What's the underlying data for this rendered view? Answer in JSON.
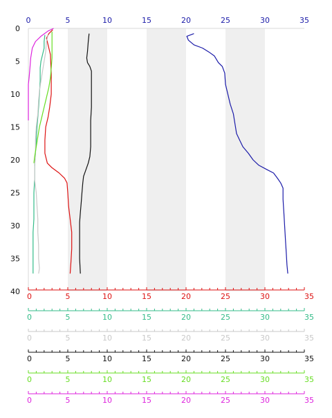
{
  "chart_data": {
    "type": "line",
    "title": "",
    "orientation": "profile-vertical-depth",
    "grid": false,
    "depth_axis": {
      "label": "",
      "range": [
        0,
        40
      ],
      "inverted": true,
      "ticks": [
        0,
        5,
        10,
        15,
        20,
        25,
        30,
        35,
        40
      ],
      "tick_labels": [
        "0",
        "5",
        "10",
        "15",
        "20",
        "25",
        "30",
        "35",
        "40"
      ]
    },
    "band_ranges": [
      [
        5,
        10
      ],
      [
        15,
        20
      ],
      [
        25,
        30
      ]
    ],
    "band_color": "#efefef",
    "x_axes": [
      {
        "id": "top_blue",
        "position": "top",
        "color": "#1a1aa8",
        "range": [
          0,
          35
        ],
        "tick_labels": [
          "0",
          "5",
          "10",
          "15",
          "20",
          "25",
          "30",
          "35"
        ]
      },
      {
        "id": "red",
        "position": "bottom",
        "color": "#dd1111",
        "range": [
          0,
          35
        ],
        "tick_labels": [
          "0",
          "5",
          "10",
          "15",
          "20",
          "25",
          "30",
          "35"
        ]
      },
      {
        "id": "teal",
        "position": "bottom",
        "color": "#33bb88",
        "range": [
          0,
          35
        ],
        "tick_labels": [
          "0",
          "5",
          "10",
          "15",
          "20",
          "25",
          "30",
          "35"
        ]
      },
      {
        "id": "lightgray",
        "position": "bottom",
        "color": "#c8c8c8",
        "range": [
          0,
          35
        ],
        "tick_labels": [
          "0",
          "5",
          "10",
          "15",
          "20",
          "25",
          "30",
          "35"
        ]
      },
      {
        "id": "black",
        "position": "bottom",
        "color": "#111111",
        "range": [
          0,
          35
        ],
        "tick_labels": [
          "0",
          "5",
          "10",
          "15",
          "20",
          "25",
          "30",
          "35"
        ]
      },
      {
        "id": "lightgreen",
        "position": "bottom",
        "color": "#66dd22",
        "range": [
          0,
          35
        ],
        "tick_labels": [
          "0",
          "5",
          "10",
          "15",
          "20",
          "25",
          "30",
          "35"
        ]
      },
      {
        "id": "magenta",
        "position": "bottom",
        "color": "#dd22dd",
        "range": [
          0,
          35
        ],
        "tick_labels": [
          "0",
          "5",
          "10",
          "15",
          "20",
          "25",
          "30",
          "35"
        ]
      }
    ],
    "series": [
      {
        "axis": "top_blue",
        "color": "#1a1aa8",
        "values": [
          [
            21.0,
            0.8
          ],
          [
            20.1,
            1.2
          ],
          [
            20.3,
            1.8
          ],
          [
            21.0,
            2.5
          ],
          [
            22.1,
            3.0
          ],
          [
            22.9,
            3.6
          ],
          [
            23.6,
            4.2
          ],
          [
            24.1,
            5.2
          ],
          [
            24.6,
            5.8
          ],
          [
            24.9,
            6.8
          ],
          [
            25.0,
            8.5
          ],
          [
            25.3,
            10.0
          ],
          [
            25.6,
            11.5
          ],
          [
            26.0,
            13.0
          ],
          [
            26.2,
            14.5
          ],
          [
            26.4,
            16.0
          ],
          [
            26.8,
            17.0
          ],
          [
            27.2,
            18.0
          ],
          [
            27.9,
            19.0
          ],
          [
            28.5,
            20.0
          ],
          [
            29.2,
            20.8
          ],
          [
            30.3,
            21.5
          ],
          [
            31.1,
            22.0
          ],
          [
            31.6,
            22.8
          ],
          [
            32.0,
            23.5
          ],
          [
            32.3,
            24.3
          ],
          [
            32.3,
            26.0
          ],
          [
            32.4,
            28.0
          ],
          [
            32.5,
            30.0
          ],
          [
            32.6,
            32.0
          ],
          [
            32.7,
            34.0
          ],
          [
            32.8,
            36.0
          ],
          [
            32.9,
            37.3
          ]
        ]
      },
      {
        "axis": "red",
        "color": "#dd1111",
        "values": [
          [
            3.1,
            0.2
          ],
          [
            2.6,
            0.8
          ],
          [
            2.3,
            1.5
          ],
          [
            2.5,
            2.5
          ],
          [
            2.8,
            4.0
          ],
          [
            2.9,
            7.0
          ],
          [
            2.9,
            10.0
          ],
          [
            2.7,
            12.0
          ],
          [
            2.5,
            13.5
          ],
          [
            2.2,
            15.0
          ],
          [
            2.1,
            17.0
          ],
          [
            2.1,
            19.0
          ],
          [
            2.4,
            20.5
          ],
          [
            3.0,
            21.2
          ],
          [
            3.9,
            22.0
          ],
          [
            4.6,
            22.8
          ],
          [
            4.9,
            23.5
          ],
          [
            5.0,
            25.0
          ],
          [
            5.1,
            27.0
          ],
          [
            5.3,
            29.0
          ],
          [
            5.5,
            31.0
          ],
          [
            5.5,
            33.5
          ],
          [
            5.4,
            35.5
          ],
          [
            5.3,
            37.3
          ]
        ]
      },
      {
        "axis": "teal",
        "color": "#33bb88",
        "values": [
          [
            2.1,
            1.0
          ],
          [
            2.0,
            2.0
          ],
          [
            2.0,
            3.0
          ],
          [
            1.8,
            4.0
          ],
          [
            1.6,
            5.0
          ],
          [
            1.5,
            6.0
          ],
          [
            1.5,
            8.0
          ],
          [
            1.4,
            10.0
          ],
          [
            1.3,
            12.0
          ],
          [
            1.2,
            13.5
          ],
          [
            1.1,
            15.0
          ],
          [
            1.0,
            17.0
          ],
          [
            0.9,
            19.0
          ],
          [
            0.8,
            21.0
          ],
          [
            0.8,
            23.0
          ],
          [
            0.7,
            25.0
          ],
          [
            0.7,
            27.0
          ],
          [
            0.7,
            29.0
          ],
          [
            0.6,
            31.0
          ],
          [
            0.6,
            33.0
          ],
          [
            0.6,
            35.0
          ],
          [
            0.6,
            37.3
          ]
        ]
      },
      {
        "axis": "lightgray",
        "color": "#c8c8c8",
        "values": [
          [
            2.5,
            1.0
          ],
          [
            2.3,
            2.0
          ],
          [
            2.2,
            3.5
          ],
          [
            2.0,
            5.0
          ],
          [
            1.8,
            6.5
          ],
          [
            1.6,
            8.0
          ],
          [
            1.4,
            9.5
          ],
          [
            1.3,
            11.0
          ],
          [
            1.2,
            13.0
          ],
          [
            1.0,
            15.0
          ],
          [
            0.9,
            17.0
          ],
          [
            0.9,
            19.0
          ],
          [
            0.8,
            21.0
          ],
          [
            0.8,
            23.0
          ],
          [
            1.0,
            25.0
          ],
          [
            1.1,
            27.0
          ],
          [
            1.2,
            29.0
          ],
          [
            1.2,
            31.0
          ],
          [
            1.3,
            33.0
          ],
          [
            1.3,
            35.0
          ],
          [
            1.4,
            36.5
          ],
          [
            1.3,
            37.3
          ]
        ]
      },
      {
        "axis": "black",
        "color": "#111111",
        "values": [
          [
            7.7,
            0.8
          ],
          [
            7.6,
            2.0
          ],
          [
            7.5,
            3.5
          ],
          [
            7.4,
            4.5
          ],
          [
            7.5,
            5.2
          ],
          [
            7.8,
            5.8
          ],
          [
            8.0,
            6.5
          ],
          [
            8.0,
            8.0
          ],
          [
            8.0,
            10.0
          ],
          [
            8.0,
            12.0
          ],
          [
            7.9,
            14.0
          ],
          [
            7.9,
            16.0
          ],
          [
            7.9,
            18.0
          ],
          [
            7.8,
            19.5
          ],
          [
            7.6,
            20.5
          ],
          [
            7.3,
            21.5
          ],
          [
            7.0,
            22.5
          ],
          [
            6.9,
            23.5
          ],
          [
            6.8,
            25.0
          ],
          [
            6.7,
            26.5
          ],
          [
            6.6,
            28.0
          ],
          [
            6.5,
            29.5
          ],
          [
            6.5,
            31.0
          ],
          [
            6.5,
            33.0
          ],
          [
            6.5,
            35.0
          ],
          [
            6.6,
            37.3
          ]
        ]
      },
      {
        "axis": "lightgreen",
        "color": "#66dd22",
        "values": [
          [
            3.0,
            0.5
          ],
          [
            3.0,
            1.5
          ],
          [
            3.0,
            3.0
          ],
          [
            3.0,
            4.5
          ],
          [
            2.9,
            6.0
          ],
          [
            2.8,
            7.5
          ],
          [
            2.6,
            9.0
          ],
          [
            2.3,
            10.5
          ],
          [
            2.0,
            12.0
          ],
          [
            1.7,
            13.5
          ],
          [
            1.4,
            15.0
          ],
          [
            1.2,
            16.5
          ],
          [
            1.0,
            18.0
          ],
          [
            0.8,
            19.5
          ],
          [
            0.7,
            20.5
          ]
        ]
      },
      {
        "axis": "magenta",
        "color": "#dd22dd",
        "values": [
          [
            3.2,
            0.0
          ],
          [
            2.5,
            0.4
          ],
          [
            1.6,
            1.2
          ],
          [
            0.9,
            2.0
          ],
          [
            0.5,
            3.0
          ],
          [
            0.3,
            4.5
          ],
          [
            0.2,
            6.0
          ],
          [
            0.1,
            7.5
          ],
          [
            0.0,
            8.5
          ],
          [
            0.0,
            10.0
          ],
          [
            0.0,
            12.0
          ],
          [
            0.0,
            14.0
          ]
        ]
      }
    ]
  }
}
